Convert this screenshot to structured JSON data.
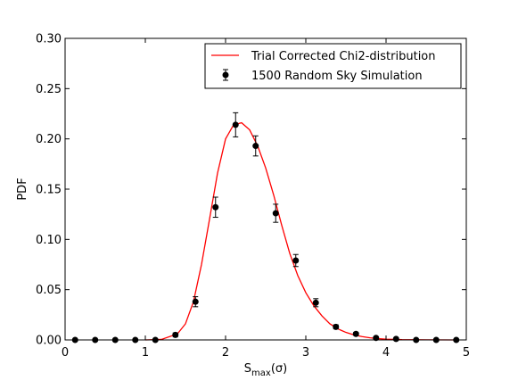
{
  "chart_data": {
    "type": "scatter",
    "xlabel_main": "S",
    "xlabel_sub": "max",
    "xlabel_suffix": "(σ)",
    "ylabel": "PDF",
    "xlim": [
      0,
      5
    ],
    "ylim": [
      0,
      0.3
    ],
    "xticks": [
      0,
      1,
      2,
      3,
      4,
      5
    ],
    "xtick_labels": [
      "0",
      "1",
      "2",
      "3",
      "4",
      "5"
    ],
    "yticks": [
      0.0,
      0.05,
      0.1,
      0.15,
      0.2,
      0.25,
      0.3
    ],
    "ytick_labels": [
      "0.00",
      "0.05",
      "0.10",
      "0.15",
      "0.20",
      "0.25",
      "0.30"
    ],
    "grid": false,
    "legend_position": "top-right",
    "series": [
      {
        "name": "1500 Random Sky Simulation",
        "kind": "errorbar",
        "color": "#000000",
        "x": [
          0.125,
          0.375,
          0.625,
          0.875,
          1.125,
          1.375,
          1.625,
          1.875,
          2.125,
          2.375,
          2.625,
          2.875,
          3.125,
          3.375,
          3.625,
          3.875,
          4.125,
          4.375,
          4.625,
          4.875
        ],
        "y": [
          0.0,
          0.0,
          0.0,
          0.0,
          0.0,
          0.005,
          0.038,
          0.132,
          0.214,
          0.193,
          0.126,
          0.079,
          0.037,
          0.013,
          0.006,
          0.002,
          0.001,
          0.0,
          0.0,
          0.0
        ],
        "yerr": [
          0.0,
          0.0,
          0.0,
          0.0,
          0.0,
          0.002,
          0.005,
          0.01,
          0.012,
          0.01,
          0.009,
          0.006,
          0.004,
          0.002,
          0.0015,
          0.001,
          0.0008,
          0.0,
          0.0,
          0.0
        ]
      },
      {
        "name": "Trial Corrected Chi2-distribution",
        "kind": "line",
        "color": "#ff0000",
        "x": [
          1.0,
          1.2,
          1.4,
          1.5,
          1.6,
          1.7,
          1.8,
          1.9,
          2.0,
          2.1,
          2.2,
          2.3,
          2.4,
          2.5,
          2.6,
          2.7,
          2.8,
          2.9,
          3.0,
          3.1,
          3.2,
          3.3,
          3.4,
          3.5,
          3.6,
          3.7,
          3.8,
          3.9,
          4.0,
          4.2,
          4.5,
          4.9
        ],
        "y": [
          0.0,
          0.0005,
          0.006,
          0.016,
          0.038,
          0.075,
          0.12,
          0.166,
          0.2,
          0.214,
          0.216,
          0.209,
          0.193,
          0.171,
          0.144,
          0.114,
          0.086,
          0.064,
          0.047,
          0.034,
          0.024,
          0.016,
          0.011,
          0.0075,
          0.005,
          0.0033,
          0.0021,
          0.0013,
          0.0008,
          0.0003,
          0.0001,
          0.0
        ]
      }
    ]
  }
}
